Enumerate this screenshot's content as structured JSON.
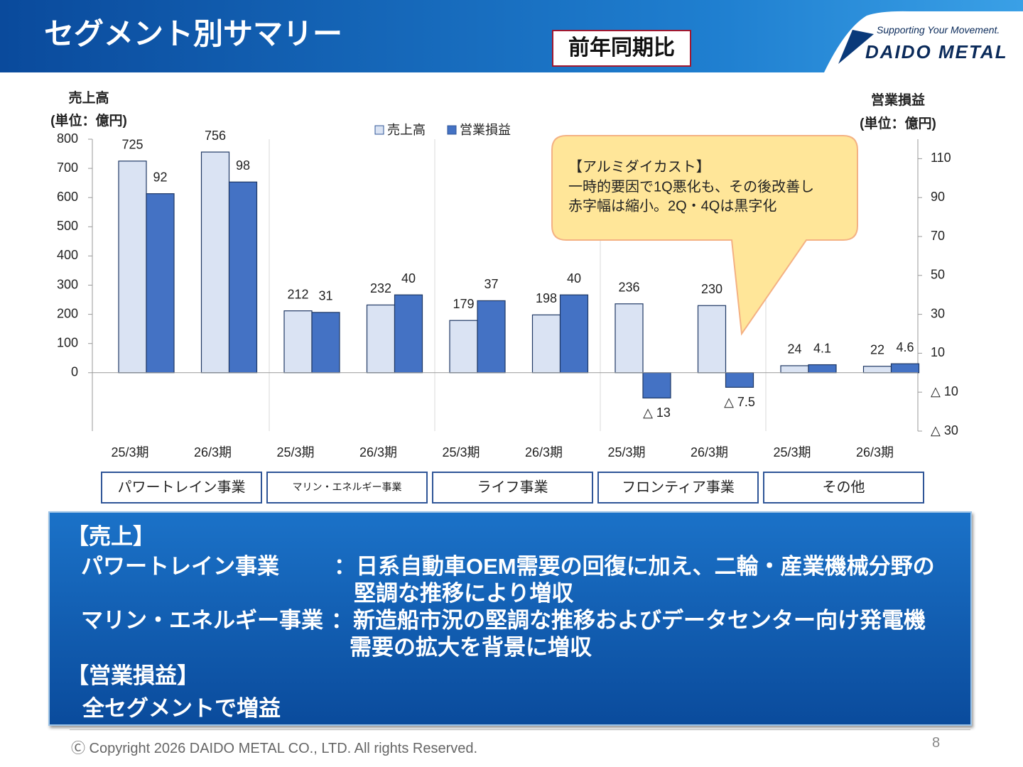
{
  "header": {
    "title": "セグメント別サマリー",
    "badge": "前年同期比",
    "tagline": "Supporting Your Movement.",
    "logo": "DAIDO METAL"
  },
  "chart_data": {
    "type": "bar",
    "y_label": "売上高",
    "y_unit": "(単位：億円)",
    "y2_label": "営業損益",
    "y2_unit": "(単位：億円)",
    "categories": [
      "25/3期",
      "26/3期",
      "25/3期",
      "26/3期",
      "25/3期",
      "26/3期",
      "25/3期",
      "26/3期",
      "25/3期",
      "26/3期"
    ],
    "groups": [
      "パワートレイン事業",
      "マリン・エネルギー事業",
      "ライフ事業",
      "フロンティア事業",
      "その他"
    ],
    "series": [
      {
        "name": "売上高",
        "color": "#dae3f3",
        "axis": "y",
        "values": [
          725,
          756,
          212,
          232,
          179,
          198,
          236,
          230,
          24,
          22
        ]
      },
      {
        "name": "営業損益",
        "color": "#4472c4",
        "axis": "y2",
        "values": [
          92,
          98,
          31,
          40,
          37,
          40,
          -13,
          -7.5,
          4.1,
          4.6
        ],
        "value_labels": [
          "92",
          "98",
          "31",
          "40",
          "37",
          "40",
          "△ 13",
          "△ 7.5",
          "4.1",
          "4.6"
        ]
      }
    ],
    "ylim": [
      -200,
      800
    ],
    "yticks": [
      0,
      100,
      200,
      300,
      400,
      500,
      600,
      700,
      800
    ],
    "y2lim": [
      -30,
      120
    ],
    "y2ticks": [
      {
        "value": -30,
        "label": "△ 30"
      },
      {
        "value": -10,
        "label": "△ 10"
      },
      10,
      30,
      50,
      70,
      90,
      110
    ],
    "legend": "top",
    "annotation": {
      "title": "【アルミダイカスト】",
      "lines": [
        "一時的要因で1Q悪化も、その後改善し",
        "赤字幅は縮小。2Q・4Qは黒字化"
      ]
    }
  },
  "summary": {
    "sales_heading": "【売上】",
    "items": [
      {
        "label": "パワートレイン事業",
        "text": "：日系自動車OEM需要の回復に加え、二輪・産業機械分野の",
        "continued": "堅調な推移により増収"
      },
      {
        "label": "マリン・エネルギー事業",
        "text": "：新造船市況の堅調な推移およびデータセンター向け発電機",
        "continued": "需要の拡大を背景に増収"
      }
    ],
    "profit_heading": "【営業損益】",
    "profit_text": "全セグメントで増益"
  },
  "footer": {
    "copyright": "Ⓒ Copyright 2026 DAIDO METAL CO., LTD. All rights Reserved.",
    "page": "8"
  }
}
